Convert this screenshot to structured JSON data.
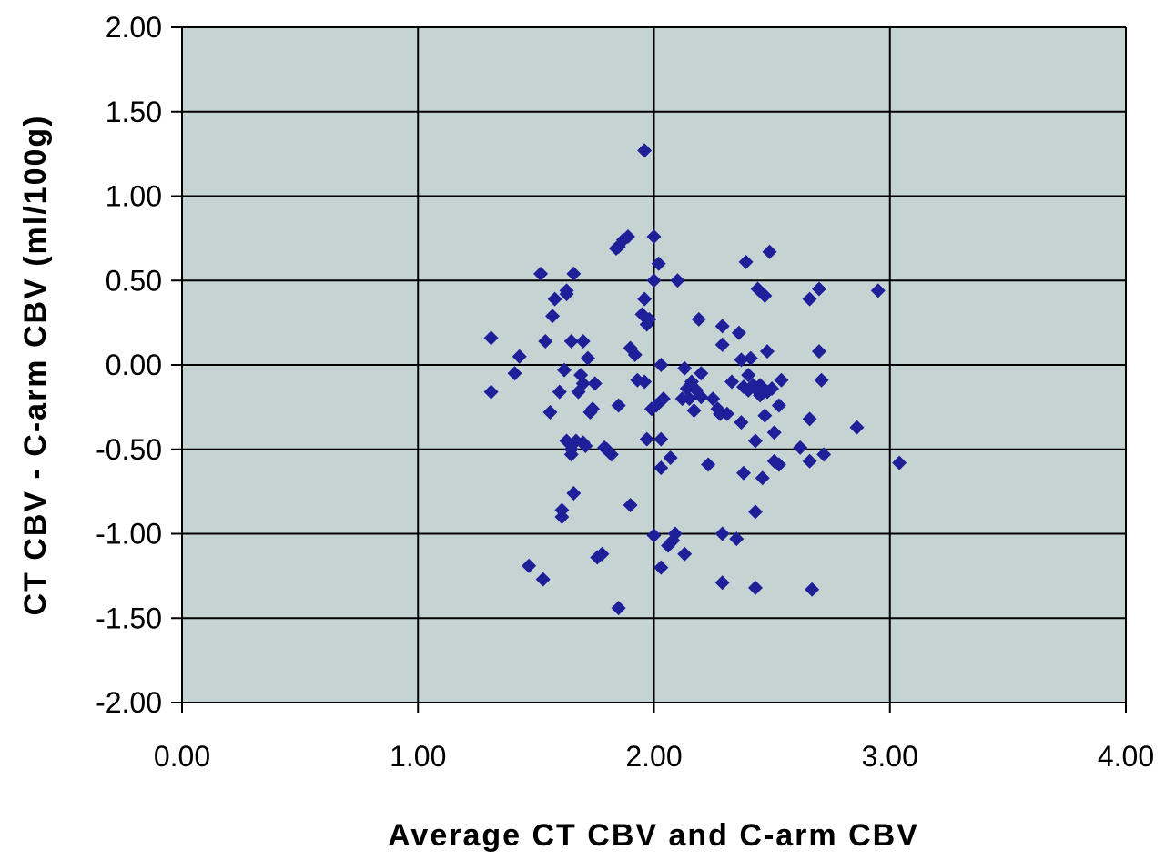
{
  "chart_data": {
    "type": "scatter",
    "title": "",
    "xlabel": "Average CT CBV and C-arm CBV",
    "ylabel": "CT CBV - C-arm CBV (ml/100g)",
    "xlim": [
      0,
      4
    ],
    "ylim": [
      -2,
      2
    ],
    "xticks": [
      "0.00",
      "1.00",
      "2.00",
      "3.00",
      "4.00"
    ],
    "yticks": [
      "2.00",
      "1.50",
      "1.00",
      "0.50",
      "0.00",
      "-0.50",
      "-1.00",
      "-1.50",
      "-2.00"
    ],
    "grid": true,
    "legend": "none",
    "colors": {
      "plot_bg": "#c6d3d3",
      "marker": "#1f1f9a",
      "grid": "#000000"
    },
    "series": [
      {
        "marker": "diamond",
        "points": [
          [
            1.31,
            0.16
          ],
          [
            1.31,
            -0.16
          ],
          [
            1.41,
            -0.05
          ],
          [
            1.43,
            0.05
          ],
          [
            1.47,
            -1.19
          ],
          [
            1.52,
            0.54
          ],
          [
            1.53,
            -1.27
          ],
          [
            1.54,
            0.14
          ],
          [
            1.56,
            -0.28
          ],
          [
            1.57,
            0.29
          ],
          [
            1.58,
            0.39
          ],
          [
            1.6,
            -0.16
          ],
          [
            1.61,
            -0.86
          ],
          [
            1.61,
            -0.9
          ],
          [
            1.62,
            -0.03
          ],
          [
            1.63,
            0.42
          ],
          [
            1.63,
            0.44
          ],
          [
            1.63,
            -0.45
          ],
          [
            1.65,
            0.14
          ],
          [
            1.65,
            -0.5
          ],
          [
            1.65,
            -0.53
          ],
          [
            1.66,
            0.54
          ],
          [
            1.66,
            -0.76
          ],
          [
            1.67,
            -0.45
          ],
          [
            1.68,
            -0.16
          ],
          [
            1.69,
            -0.06
          ],
          [
            1.7,
            0.14
          ],
          [
            1.7,
            -0.11
          ],
          [
            1.7,
            -0.46
          ],
          [
            1.71,
            -0.48
          ],
          [
            1.72,
            0.04
          ],
          [
            1.73,
            -0.28
          ],
          [
            1.74,
            -0.26
          ],
          [
            1.75,
            -0.11
          ],
          [
            1.76,
            -1.14
          ],
          [
            1.78,
            -1.12
          ],
          [
            1.79,
            -0.49
          ],
          [
            1.8,
            -0.5
          ],
          [
            1.82,
            -0.53
          ],
          [
            1.84,
            0.69
          ],
          [
            1.85,
            0.7
          ],
          [
            1.85,
            -0.24
          ],
          [
            1.85,
            -1.44
          ],
          [
            1.87,
            0.74
          ],
          [
            1.89,
            0.76
          ],
          [
            1.9,
            0.1
          ],
          [
            1.9,
            -0.83
          ],
          [
            1.92,
            0.06
          ],
          [
            1.93,
            -0.09
          ],
          [
            1.95,
            0.3
          ],
          [
            1.96,
            0.39
          ],
          [
            1.96,
            1.27
          ],
          [
            1.96,
            -0.1
          ],
          [
            1.97,
            0.24
          ],
          [
            1.97,
            -0.44
          ],
          [
            1.98,
            0.27
          ],
          [
            1.99,
            -0.26
          ],
          [
            2.0,
            0.5
          ],
          [
            2.0,
            0.76
          ],
          [
            2.0,
            -1.01
          ],
          [
            2.01,
            -0.24
          ],
          [
            2.02,
            0.6
          ],
          [
            2.03,
            0.0
          ],
          [
            2.03,
            -0.44
          ],
          [
            2.03,
            -0.61
          ],
          [
            2.03,
            -1.2
          ],
          [
            2.04,
            -0.2
          ],
          [
            2.06,
            -1.07
          ],
          [
            2.07,
            -0.55
          ],
          [
            2.08,
            -1.04
          ],
          [
            2.09,
            -1.0
          ],
          [
            2.1,
            0.5
          ],
          [
            2.12,
            -0.2
          ],
          [
            2.13,
            -0.02
          ],
          [
            2.13,
            -1.12
          ],
          [
            2.14,
            -0.14
          ],
          [
            2.15,
            -0.2
          ],
          [
            2.16,
            -0.1
          ],
          [
            2.17,
            -0.27
          ],
          [
            2.18,
            -0.15
          ],
          [
            2.19,
            0.27
          ],
          [
            2.2,
            -0.05
          ],
          [
            2.2,
            -0.19
          ],
          [
            2.23,
            -0.59
          ],
          [
            2.25,
            -0.2
          ],
          [
            2.27,
            -0.26
          ],
          [
            2.28,
            -0.29
          ],
          [
            2.29,
            0.23
          ],
          [
            2.29,
            0.12
          ],
          [
            2.29,
            -1.0
          ],
          [
            2.29,
            -1.29
          ],
          [
            2.31,
            -0.29
          ],
          [
            2.33,
            -0.1
          ],
          [
            2.35,
            -1.03
          ],
          [
            2.36,
            0.19
          ],
          [
            2.37,
            -0.34
          ],
          [
            2.37,
            0.03
          ],
          [
            2.38,
            -0.13
          ],
          [
            2.38,
            -0.64
          ],
          [
            2.39,
            0.61
          ],
          [
            2.4,
            -0.06
          ],
          [
            2.4,
            -0.15
          ],
          [
            2.41,
            0.04
          ],
          [
            2.42,
            -0.12
          ],
          [
            2.43,
            -0.14
          ],
          [
            2.43,
            -0.45
          ],
          [
            2.43,
            -0.87
          ],
          [
            2.43,
            -1.32
          ],
          [
            2.44,
            0.45
          ],
          [
            2.45,
            -0.18
          ],
          [
            2.45,
            -0.12
          ],
          [
            2.46,
            -0.67
          ],
          [
            2.47,
            0.41
          ],
          [
            2.47,
            -0.3
          ],
          [
            2.48,
            0.08
          ],
          [
            2.48,
            -0.16
          ],
          [
            2.49,
            0.67
          ],
          [
            2.5,
            -0.14
          ],
          [
            2.51,
            -0.4
          ],
          [
            2.51,
            -0.57
          ],
          [
            2.53,
            -0.59
          ],
          [
            2.53,
            -0.24
          ],
          [
            2.54,
            -0.09
          ],
          [
            2.62,
            -0.49
          ],
          [
            2.66,
            0.39
          ],
          [
            2.66,
            -0.32
          ],
          [
            2.66,
            -0.57
          ],
          [
            2.67,
            -1.33
          ],
          [
            2.7,
            0.45
          ],
          [
            2.7,
            0.08
          ],
          [
            2.71,
            -0.09
          ],
          [
            2.72,
            -0.53
          ],
          [
            2.86,
            -0.37
          ],
          [
            2.95,
            0.44
          ],
          [
            3.04,
            -0.58
          ]
        ]
      }
    ]
  }
}
